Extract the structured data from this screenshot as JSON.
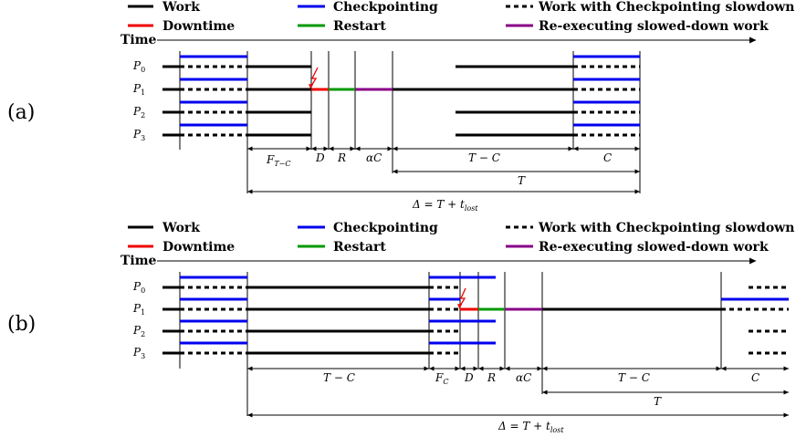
{
  "colors": {
    "work": "#000000",
    "checkpointing": "#0000ee",
    "downtime": "#ee0000",
    "restart": "#009900",
    "reexec": "#880088",
    "failure_bolt": "#ee0000"
  },
  "legend": {
    "work": "Work",
    "checkpointing": "Checkpointing",
    "slowdown": "Work with Checkpointing slowdown",
    "downtime": "Downtime",
    "restart": "Restart",
    "reexec": "Re-executing slowed-down work"
  },
  "time_label": "Time",
  "panels": [
    {
      "label": "(a)",
      "processors": [
        {
          "name": "P",
          "sub": "0"
        },
        {
          "name": "P",
          "sub": "1"
        },
        {
          "name": "P",
          "sub": "2"
        },
        {
          "name": "P",
          "sub": "3"
        }
      ],
      "intervals": [
        {
          "text": "F",
          "sub": "T−C"
        },
        {
          "text": "D",
          "sub": ""
        },
        {
          "text": "R",
          "sub": ""
        },
        {
          "text": "αC",
          "sub": ""
        },
        {
          "text": "T − C",
          "sub": ""
        },
        {
          "text": "C",
          "sub": ""
        }
      ],
      "period": {
        "text": "T",
        "sub": ""
      },
      "delta": {
        "text": "Δ = T + t",
        "sub": "lost"
      }
    },
    {
      "label": "(b)",
      "processors": [
        {
          "name": "P",
          "sub": "0"
        },
        {
          "name": "P",
          "sub": "1"
        },
        {
          "name": "P",
          "sub": "2"
        },
        {
          "name": "P",
          "sub": "3"
        }
      ],
      "intervals": [
        {
          "text": "T − C",
          "sub": ""
        },
        {
          "text": "F",
          "sub": "C"
        },
        {
          "text": "D",
          "sub": ""
        },
        {
          "text": "R",
          "sub": ""
        },
        {
          "text": "αC",
          "sub": ""
        },
        {
          "text": "T − C",
          "sub": ""
        },
        {
          "text": "C",
          "sub": ""
        }
      ],
      "period": {
        "text": "T",
        "sub": ""
      },
      "delta": {
        "text": "Δ = T + t",
        "sub": "lost"
      }
    }
  ]
}
